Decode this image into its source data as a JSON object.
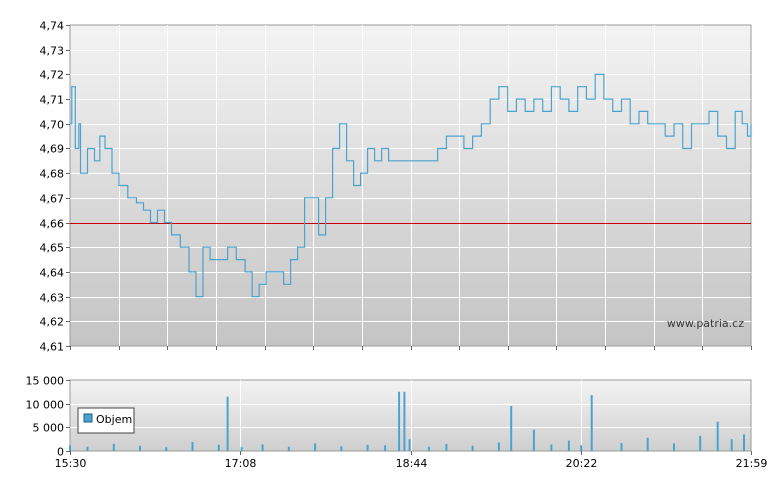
{
  "chart_data": [
    {
      "type": "line",
      "title": "",
      "xlabel": "",
      "ylabel": "",
      "ylim": [
        4.61,
        4.74
      ],
      "grid": true,
      "y_ticks": [
        "4,61",
        "4,62",
        "4,63",
        "4,64",
        "4,65",
        "4,66",
        "4,67",
        "4,68",
        "4,69",
        "4,70",
        "4,71",
        "4,72",
        "4,73",
        "4,74"
      ],
      "reference_line": {
        "value": 4.66,
        "color": "#cc0000"
      },
      "watermark": "www.patria.cz",
      "series": [
        {
          "color": "#4aa3cf",
          "points": [
            [
              "15:30",
              4.7
            ],
            [
              "15:31",
              4.715
            ],
            [
              "15:33",
              4.69
            ],
            [
              "15:35",
              4.7
            ],
            [
              "15:36",
              4.68
            ],
            [
              "15:40",
              4.69
            ],
            [
              "15:44",
              4.685
            ],
            [
              "15:47",
              4.695
            ],
            [
              "15:50",
              4.69
            ],
            [
              "15:54",
              4.68
            ],
            [
              "15:58",
              4.675
            ],
            [
              "16:03",
              4.67
            ],
            [
              "16:08",
              4.668
            ],
            [
              "16:12",
              4.665
            ],
            [
              "16:16",
              4.66
            ],
            [
              "16:20",
              4.665
            ],
            [
              "16:24",
              4.66
            ],
            [
              "16:28",
              4.655
            ],
            [
              "16:33",
              4.65
            ],
            [
              "16:38",
              4.64
            ],
            [
              "16:42",
              4.63
            ],
            [
              "16:46",
              4.65
            ],
            [
              "16:50",
              4.645
            ],
            [
              "16:55",
              4.645
            ],
            [
              "17:00",
              4.65
            ],
            [
              "17:05",
              4.645
            ],
            [
              "17:10",
              4.64
            ],
            [
              "17:14",
              4.63
            ],
            [
              "17:18",
              4.635
            ],
            [
              "17:22",
              4.64
            ],
            [
              "17:27",
              4.64
            ],
            [
              "17:32",
              4.635
            ],
            [
              "17:36",
              4.645
            ],
            [
              "17:40",
              4.65
            ],
            [
              "17:44",
              4.67
            ],
            [
              "17:48",
              4.67
            ],
            [
              "17:52",
              4.655
            ],
            [
              "17:56",
              4.67
            ],
            [
              "18:00",
              4.69
            ],
            [
              "18:04",
              4.7
            ],
            [
              "18:08",
              4.685
            ],
            [
              "18:12",
              4.675
            ],
            [
              "18:16",
              4.68
            ],
            [
              "18:20",
              4.69
            ],
            [
              "18:24",
              4.685
            ],
            [
              "18:28",
              4.69
            ],
            [
              "18:32",
              4.685
            ],
            [
              "18:36",
              4.685
            ],
            [
              "18:44",
              4.685
            ],
            [
              "18:52",
              4.685
            ],
            [
              "19:00",
              4.69
            ],
            [
              "19:05",
              4.695
            ],
            [
              "19:10",
              4.695
            ],
            [
              "19:15",
              4.69
            ],
            [
              "19:20",
              4.695
            ],
            [
              "19:25",
              4.7
            ],
            [
              "19:30",
              4.71
            ],
            [
              "19:35",
              4.715
            ],
            [
              "19:40",
              4.705
            ],
            [
              "19:45",
              4.71
            ],
            [
              "19:50",
              4.705
            ],
            [
              "19:55",
              4.71
            ],
            [
              "20:00",
              4.705
            ],
            [
              "20:05",
              4.715
            ],
            [
              "20:10",
              4.71
            ],
            [
              "20:15",
              4.705
            ],
            [
              "20:20",
              4.715
            ],
            [
              "20:25",
              4.71
            ],
            [
              "20:30",
              4.72
            ],
            [
              "20:35",
              4.71
            ],
            [
              "20:40",
              4.705
            ],
            [
              "20:45",
              4.71
            ],
            [
              "20:50",
              4.7
            ],
            [
              "20:55",
              4.705
            ],
            [
              "21:00",
              4.7
            ],
            [
              "21:05",
              4.7
            ],
            [
              "21:10",
              4.695
            ],
            [
              "21:15",
              4.7
            ],
            [
              "21:20",
              4.69
            ],
            [
              "21:25",
              4.7
            ],
            [
              "21:30",
              4.7
            ],
            [
              "21:35",
              4.705
            ],
            [
              "21:40",
              4.695
            ],
            [
              "21:45",
              4.69
            ],
            [
              "21:50",
              4.705
            ],
            [
              "21:54",
              4.7
            ],
            [
              "21:57",
              4.695
            ],
            [
              "21:59",
              4.7
            ]
          ]
        }
      ]
    },
    {
      "type": "bar",
      "title": "",
      "xlabel": "",
      "ylabel": "",
      "ylim": [
        0,
        15000
      ],
      "grid": true,
      "y_ticks": [
        "0",
        "5 000",
        "10 000",
        "15 000"
      ],
      "x_ticks": [
        "15:30",
        "17:08",
        "18:44",
        "20:22",
        "21:59"
      ],
      "legend": {
        "position": "left",
        "entries": [
          {
            "label": "Objem",
            "color": "#4aa3cf"
          }
        ]
      },
      "series": [
        {
          "name": "Objem",
          "color": "#4aa3cf",
          "x": [
            "15:30",
            "15:40",
            "15:55",
            "16:10",
            "16:25",
            "16:40",
            "16:55",
            "17:00",
            "17:08",
            "17:20",
            "17:35",
            "17:50",
            "18:05",
            "18:20",
            "18:30",
            "18:38",
            "18:41",
            "18:44",
            "18:55",
            "19:05",
            "19:20",
            "19:35",
            "19:42",
            "19:55",
            "20:05",
            "20:15",
            "20:22",
            "20:28",
            "20:45",
            "21:00",
            "21:15",
            "21:30",
            "21:40",
            "21:48",
            "21:55"
          ],
          "values": [
            1200,
            900,
            1500,
            1100,
            800,
            1900,
            1300,
            11500,
            800,
            1400,
            900,
            1600,
            1000,
            1300,
            1200,
            12500,
            12500,
            2500,
            900,
            1500,
            1100,
            1800,
            9500,
            4500,
            1400,
            2200,
            1200,
            11800,
            1700,
            2800,
            1600,
            3200,
            6200,
            2500,
            3500
          ]
        }
      ]
    }
  ]
}
